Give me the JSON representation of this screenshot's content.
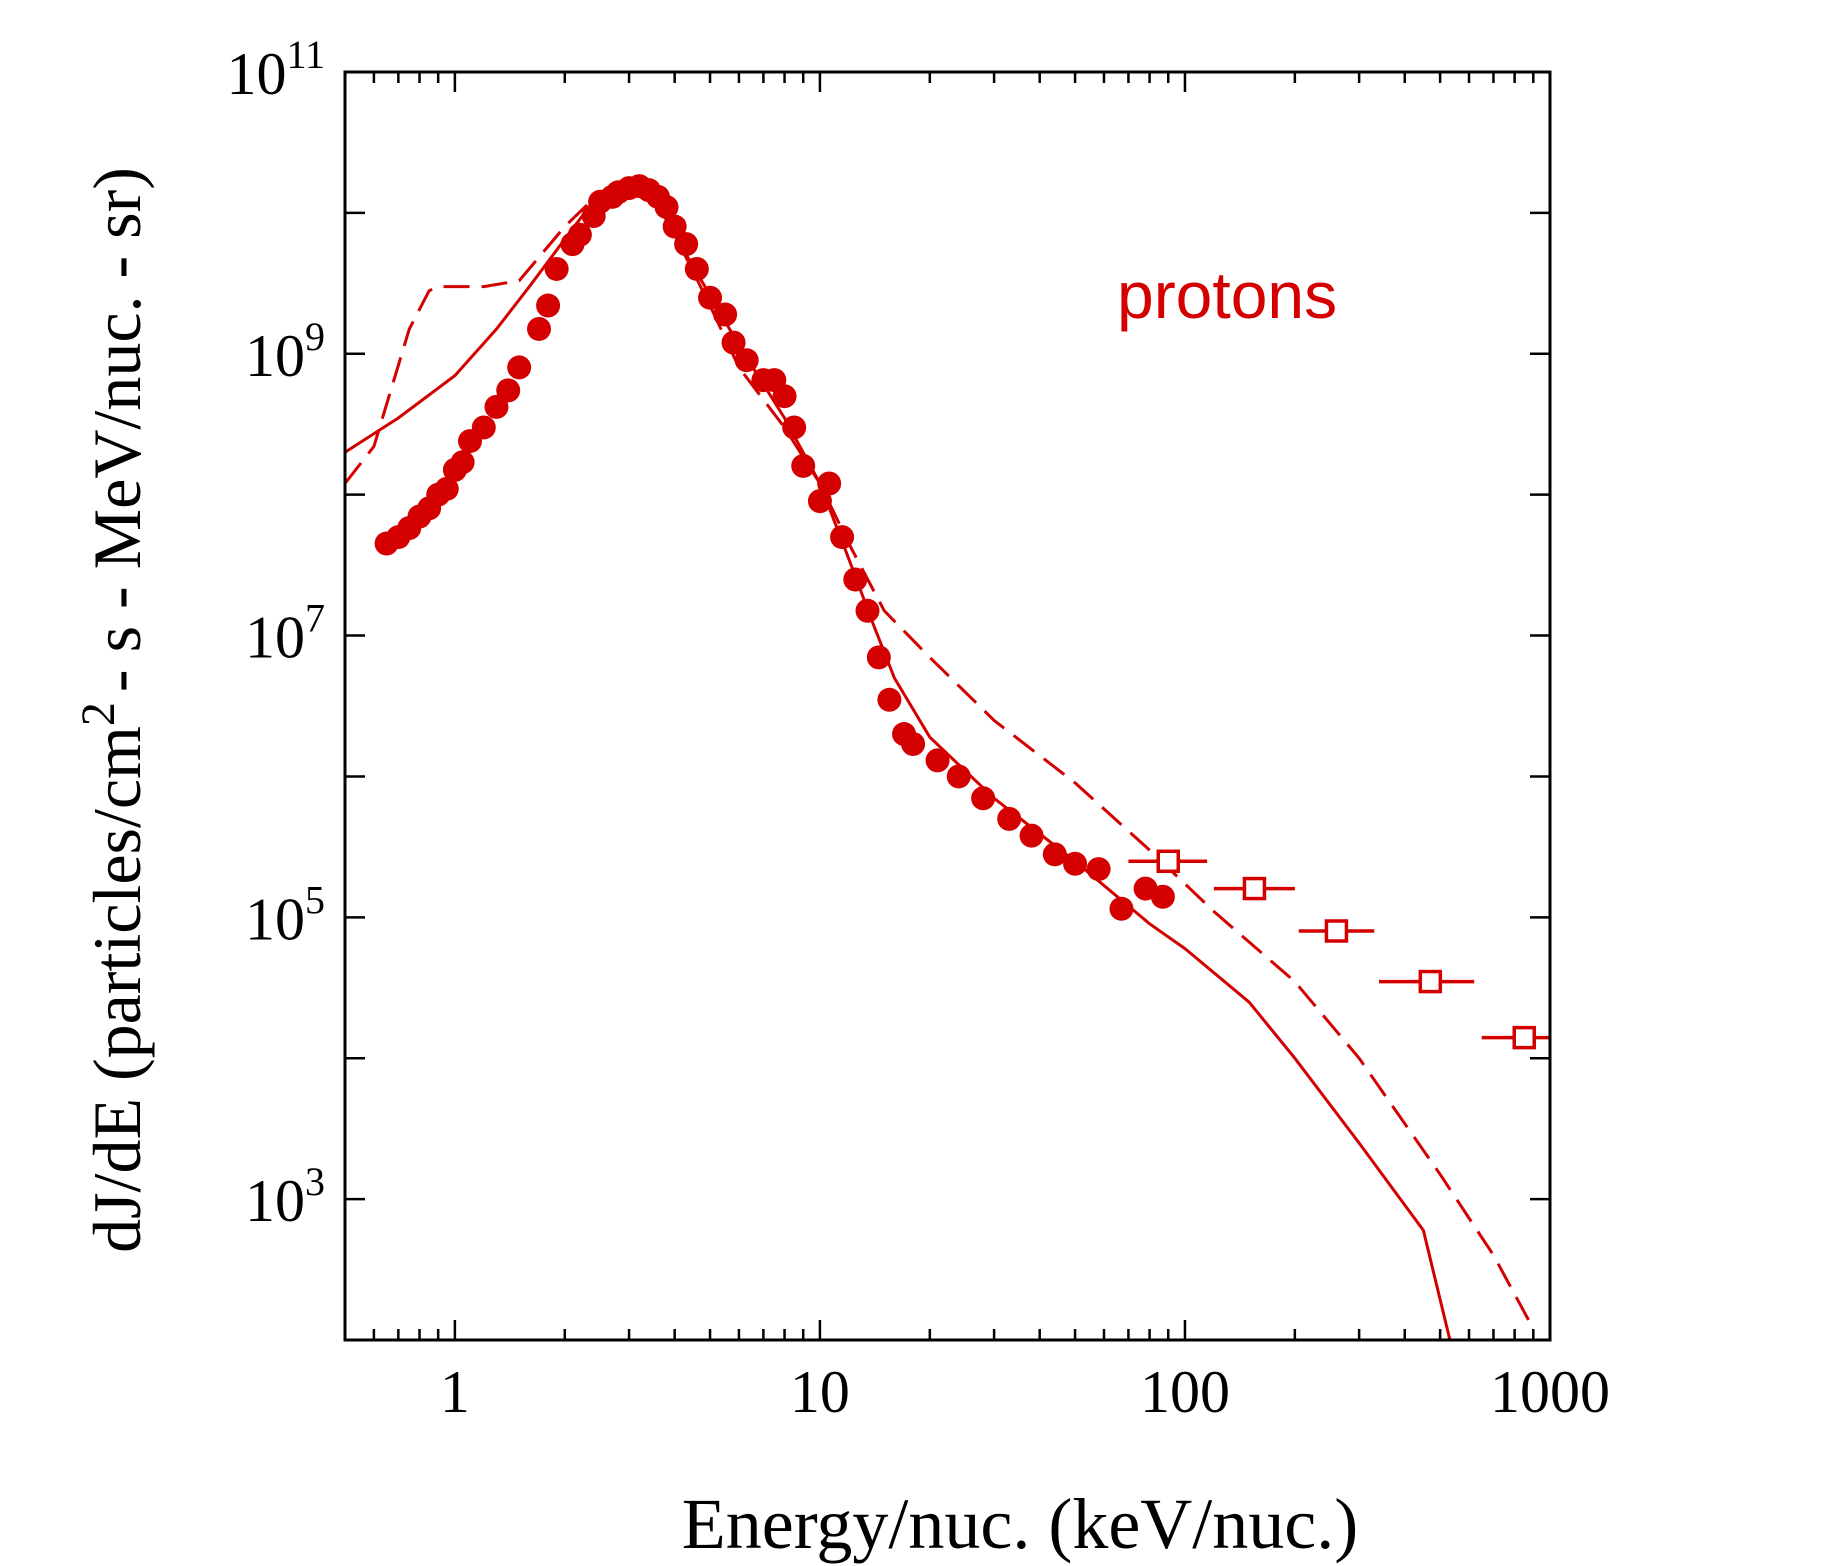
{
  "chart_data": {
    "type": "scatter",
    "title": "",
    "xlabel": "Energy/nuc. (keV/nuc.)",
    "ylabel_main": "dJ/dE (particles/cm",
    "ylabel_sup": "2",
    "ylabel_rest": "- s - MeV/nuc. - sr)",
    "xscale": "log",
    "yscale": "log",
    "xlim": [
      0.5,
      1000
    ],
    "ylim": [
      100,
      100000000000
    ],
    "x_ticks": [
      {
        "value": 1,
        "label": "1"
      },
      {
        "value": 10,
        "label": "10"
      },
      {
        "value": 100,
        "label": "100"
      },
      {
        "value": 1000,
        "label": "1000"
      }
    ],
    "y_ticks": [
      {
        "value": 1000,
        "base": "10",
        "exp": "3"
      },
      {
        "value": 100000,
        "base": "10",
        "exp": "5"
      },
      {
        "value": 10000000,
        "base": "10",
        "exp": "7"
      },
      {
        "value": 1000000000,
        "base": "10",
        "exp": "9"
      },
      {
        "value": 100000000000,
        "base": "10",
        "exp": "11"
      }
    ],
    "color": "#d40000",
    "annotation": "protons",
    "series": [
      {
        "name": "model-solid",
        "style": "solid-line",
        "points": [
          [
            0.5,
            200000000.0
          ],
          [
            0.7,
            350000000.0
          ],
          [
            1.0,
            700000000.0
          ],
          [
            1.3,
            1500000000.0
          ],
          [
            1.6,
            3000000000.0
          ],
          [
            2.0,
            6500000000.0
          ],
          [
            2.3,
            10500000000.0
          ],
          [
            2.6,
            14000000000.0
          ],
          [
            2.9,
            16000000000.0
          ],
          [
            3.2,
            15500000000.0
          ],
          [
            3.6,
            12000000000.0
          ],
          [
            4.0,
            7000000000.0
          ],
          [
            5.0,
            2600000000.0
          ],
          [
            6.0,
            1150000000.0
          ],
          [
            8.0,
            350000000.0
          ],
          [
            10.0,
            120000000.0
          ],
          [
            12.0,
            35000000.0
          ],
          [
            14.0,
            12000000.0
          ],
          [
            16.0,
            5000000.0
          ],
          [
            20.0,
            1900000.0
          ],
          [
            30.0,
            700000.0
          ],
          [
            50.0,
            250000.0
          ],
          [
            80.0,
            90000.0
          ],
          [
            100.0,
            60000.0
          ],
          [
            150.0,
            25000.0
          ],
          [
            200.0,
            10000.0
          ],
          [
            300.0,
            2500.0
          ],
          [
            450.0,
            600
          ],
          [
            550.0,
            70
          ]
        ]
      },
      {
        "name": "model-dashed",
        "style": "dashed-line",
        "points": [
          [
            0.5,
            120000000.0
          ],
          [
            0.6,
            220000000.0
          ],
          [
            0.75,
            1500000000.0
          ],
          [
            0.85,
            2800000000.0
          ],
          [
            0.9,
            3000000000.0
          ],
          [
            1.2,
            3000000000.0
          ],
          [
            1.5,
            3300000000.0
          ],
          [
            2.0,
            8000000000.0
          ],
          [
            2.5,
            14000000000.0
          ],
          [
            3.0,
            17000000000.0
          ],
          [
            3.5,
            13000000000.0
          ],
          [
            4.0,
            7000000000.0
          ],
          [
            5.0,
            2200000000.0
          ],
          [
            6.0,
            800000000.0
          ],
          [
            8.0,
            300000000.0
          ],
          [
            10.0,
            120000000.0
          ],
          [
            12.0,
            45000000.0
          ],
          [
            15.0,
            15000000.0
          ],
          [
            20.0,
            7000000.0
          ],
          [
            30.0,
            2500000.0
          ],
          [
            50.0,
            900000.0
          ],
          [
            80.0,
            300000.0
          ],
          [
            120.0,
            110000.0
          ],
          [
            200.0,
            35000.0
          ],
          [
            300.0,
            10000.0
          ],
          [
            500.0,
            1500.0
          ],
          [
            700.0,
            400
          ],
          [
            900.0,
            120
          ]
        ]
      },
      {
        "name": "data-filled-circles",
        "style": "filled-circle",
        "points": [
          [
            0.65,
            45000000.0
          ],
          [
            0.7,
            50000000.0
          ],
          [
            0.75,
            58000000.0
          ],
          [
            0.8,
            70000000.0
          ],
          [
            0.85,
            80000000.0
          ],
          [
            0.9,
            100000000.0
          ],
          [
            0.95,
            110000000.0
          ],
          [
            1.0,
            150000000.0
          ],
          [
            1.05,
            170000000.0
          ],
          [
            1.1,
            240000000.0
          ],
          [
            1.2,
            300000000.0
          ],
          [
            1.3,
            420000000.0
          ],
          [
            1.4,
            550000000.0
          ],
          [
            1.5,
            800000000.0
          ],
          [
            1.7,
            1500000000.0
          ],
          [
            1.8,
            2200000000.0
          ],
          [
            1.9,
            4000000000.0
          ],
          [
            2.1,
            6000000000.0
          ],
          [
            2.2,
            7000000000.0
          ],
          [
            2.4,
            9500000000.0
          ],
          [
            2.5,
            12000000000.0
          ],
          [
            2.7,
            13000000000.0
          ],
          [
            2.8,
            14000000000.0
          ],
          [
            3.0,
            15000000000.0
          ],
          [
            3.2,
            15500000000.0
          ],
          [
            3.4,
            14500000000.0
          ],
          [
            3.6,
            13000000000.0
          ],
          [
            3.8,
            11000000000.0
          ],
          [
            4.0,
            8000000000.0
          ],
          [
            4.3,
            6000000000.0
          ],
          [
            4.6,
            4000000000.0
          ],
          [
            5.0,
            2500000000.0
          ],
          [
            5.5,
            1900000000.0
          ],
          [
            5.8,
            1200000000.0
          ],
          [
            6.3,
            900000000.0
          ],
          [
            7.0,
            650000000.0
          ],
          [
            7.5,
            650000000.0
          ],
          [
            8.0,
            500000000.0
          ],
          [
            8.5,
            300000000.0
          ],
          [
            9.0,
            160000000.0
          ],
          [
            10.0,
            90000000.0
          ],
          [
            10.6,
            120000000.0
          ],
          [
            11.5,
            50000000.0
          ],
          [
            12.5,
            25000000.0
          ],
          [
            13.5,
            15000000.0
          ],
          [
            14.5,
            7000000.0
          ],
          [
            15.5,
            3500000.0
          ],
          [
            17.0,
            2000000.0
          ],
          [
            18.0,
            1700000.0
          ],
          [
            21.0,
            1300000.0
          ],
          [
            24.0,
            1000000.0
          ],
          [
            28.0,
            700000.0
          ],
          [
            33.0,
            500000.0
          ],
          [
            38.0,
            380000.0
          ],
          [
            44.0,
            280000.0
          ],
          [
            50.0,
            240000.0
          ],
          [
            58.0,
            220000.0
          ],
          [
            67.0,
            115000.0
          ],
          [
            78.0,
            160000.0
          ],
          [
            87.0,
            140000.0
          ]
        ]
      },
      {
        "name": "data-open-squares",
        "style": "open-square-xerr",
        "points": [
          [
            90,
            250000.0,
            70,
            115
          ],
          [
            155,
            160000.0,
            120,
            200
          ],
          [
            260,
            80000.0,
            205,
            330
          ],
          [
            470,
            35000.0,
            340,
            620
          ],
          [
            850,
            14000.0,
            650,
            1000
          ]
        ]
      }
    ]
  }
}
